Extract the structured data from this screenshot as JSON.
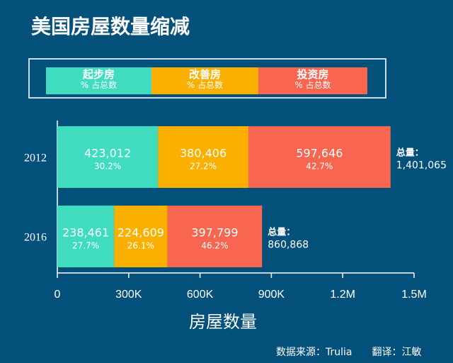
{
  "title": "美国房屋数量缩减",
  "legend": [
    {
      "name": "起步房",
      "sub": "% 占总数",
      "color": "#40dcc0"
    },
    {
      "name": "改善房",
      "sub": "%  占总数",
      "color": "#fbb000"
    },
    {
      "name": "投资房",
      "sub": "% 占总数",
      "color": "#f86550"
    }
  ],
  "chart_data": {
    "type": "bar",
    "orientation": "horizontal",
    "stacked": true,
    "categories": [
      "2012",
      "2016"
    ],
    "series": [
      {
        "name": "起步房",
        "values": [
          423012,
          238461
        ],
        "labels": [
          "423,012",
          "238,461"
        ],
        "pct": [
          "30.2%",
          "27.7%"
        ]
      },
      {
        "name": "改善房",
        "values": [
          380406,
          224609
        ],
        "labels": [
          "380,406",
          "224,609"
        ],
        "pct": [
          "27.2%",
          "26.1%"
        ]
      },
      {
        "name": "投资房",
        "values": [
          597646,
          397799
        ],
        "labels": [
          "597,646",
          "397,799"
        ],
        "pct": [
          "42.7%",
          "46.2%"
        ]
      }
    ],
    "totals": [
      "1,401,065",
      "860,868"
    ],
    "total_label": "总量：",
    "xlabel": "房屋数量",
    "xlim": [
      0,
      1500000
    ],
    "xticks": [
      0,
      300000,
      600000,
      900000,
      1200000,
      1500000
    ],
    "xtick_labels": [
      "0",
      "300K",
      "600K",
      "900K",
      "1.2M",
      "1.5M"
    ]
  },
  "footer": {
    "source": "数据来源：Trulia",
    "translator": "翻译：江敏"
  }
}
